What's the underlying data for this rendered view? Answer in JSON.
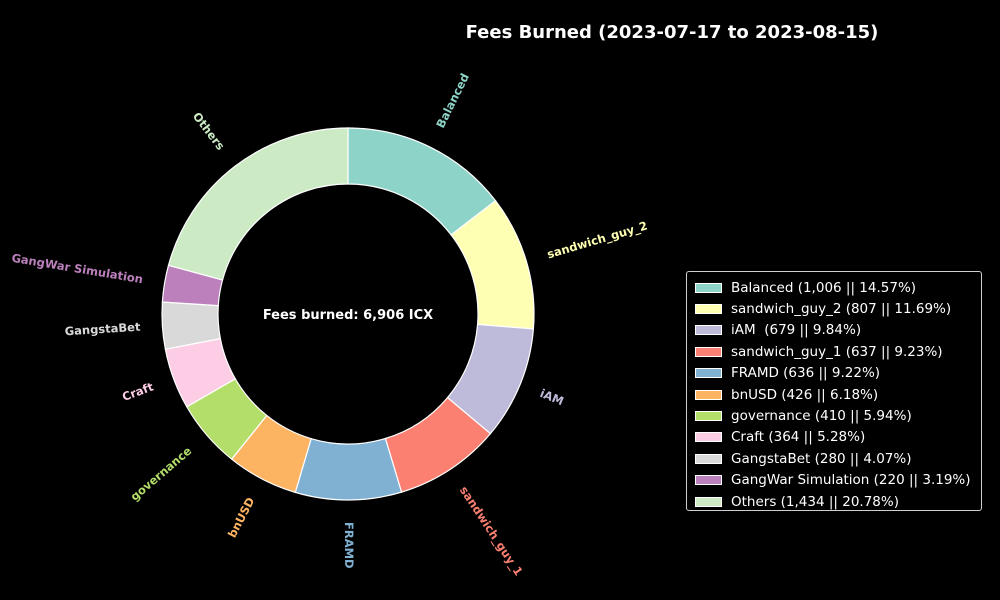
{
  "chart_data": {
    "type": "pie",
    "variant": "donut",
    "title": "Fees Burned (2023-07-17 to 2023-08-15)",
    "center_label": "Fees burned: 6,906 ICX",
    "start_angle_deg": 90,
    "direction": "clockwise",
    "legend_position": "right",
    "slices": [
      {
        "label": "Balanced",
        "value": 1006,
        "percent": 14.57,
        "legend": "Balanced (1,006 || 14.57%)",
        "color": "#8dd3c7"
      },
      {
        "label": "sandwich_guy_2",
        "value": 807,
        "percent": 11.69,
        "legend": "sandwich_guy_2 (807 || 11.69%)",
        "color": "#ffffb3"
      },
      {
        "label": "iAM",
        "value": 679,
        "percent": 9.84,
        "legend": "iAM  (679 || 9.84%)",
        "color": "#bebada"
      },
      {
        "label": "sandwich_guy_1",
        "value": 637,
        "percent": 9.23,
        "legend": "sandwich_guy_1 (637 || 9.23%)",
        "color": "#fb8072"
      },
      {
        "label": "FRAMD",
        "value": 636,
        "percent": 9.22,
        "legend": "FRAMD (636 || 9.22%)",
        "color": "#80b1d3"
      },
      {
        "label": "bnUSD",
        "value": 426,
        "percent": 6.18,
        "legend": "bnUSD (426 || 6.18%)",
        "color": "#fdb462"
      },
      {
        "label": "governance",
        "value": 410,
        "percent": 5.94,
        "legend": "governance (410 || 5.94%)",
        "color": "#b3de69"
      },
      {
        "label": "Craft",
        "value": 364,
        "percent": 5.28,
        "legend": "Craft (364 || 5.28%)",
        "color": "#fccde5"
      },
      {
        "label": "GangstaBet",
        "value": 280,
        "percent": 4.07,
        "legend": "GangstaBet (280 || 4.07%)",
        "color": "#d9d9d9"
      },
      {
        "label": "GangWar Simulation",
        "value": 220,
        "percent": 3.19,
        "legend": "GangWar Simulation (220 || 3.19%)",
        "color": "#bc80bd"
      },
      {
        "label": "Others",
        "value": 1434,
        "percent": 20.78,
        "legend": "Others (1,434 || 20.78%)",
        "color": "#ccebc5"
      }
    ]
  }
}
